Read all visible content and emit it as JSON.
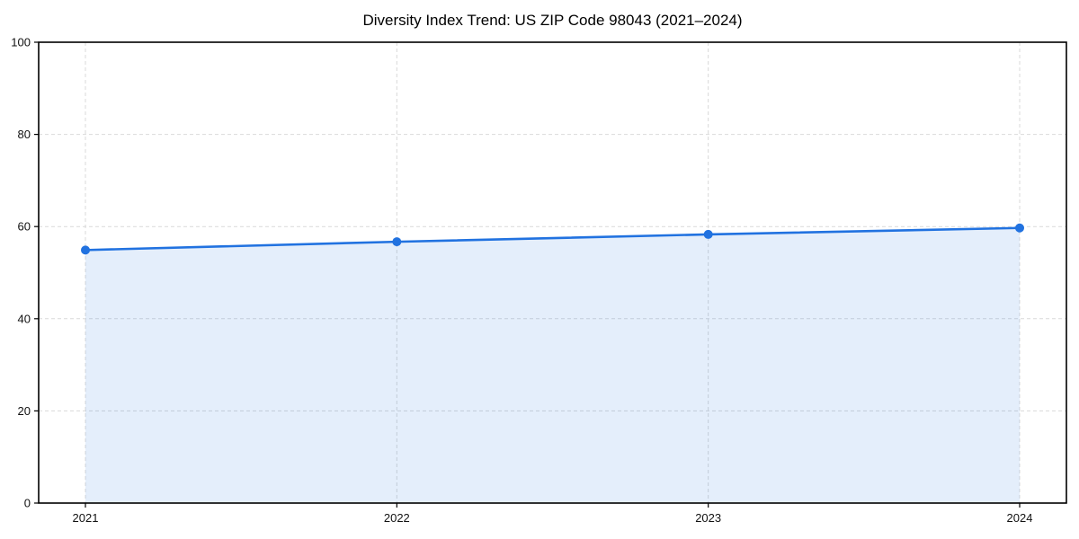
{
  "figure": {
    "background": "#ffffff"
  },
  "chart_data": {
    "type": "area",
    "title": "Diversity Index Trend: US ZIP Code 98043 (2021–2024)",
    "xlabel": "",
    "ylabel": "",
    "categories": [
      "2021",
      "2022",
      "2023",
      "2024"
    ],
    "series": [
      {
        "name": "Diversity Index",
        "values": [
          54.9,
          56.7,
          58.3,
          59.7
        ]
      }
    ],
    "ylim": [
      0,
      100
    ],
    "yticks": [
      0,
      20,
      40,
      60,
      80,
      100
    ],
    "grid": true,
    "grid_style": "dashed",
    "legend_position": "none",
    "colors": {
      "line": "#2172e0",
      "marker": "#2172e0",
      "fill": "#2172e0",
      "fill_opacity": 0.12,
      "grid": "#d9d9d9",
      "spine": "#000000",
      "tick_label": "#111111",
      "title": "#000000"
    }
  }
}
